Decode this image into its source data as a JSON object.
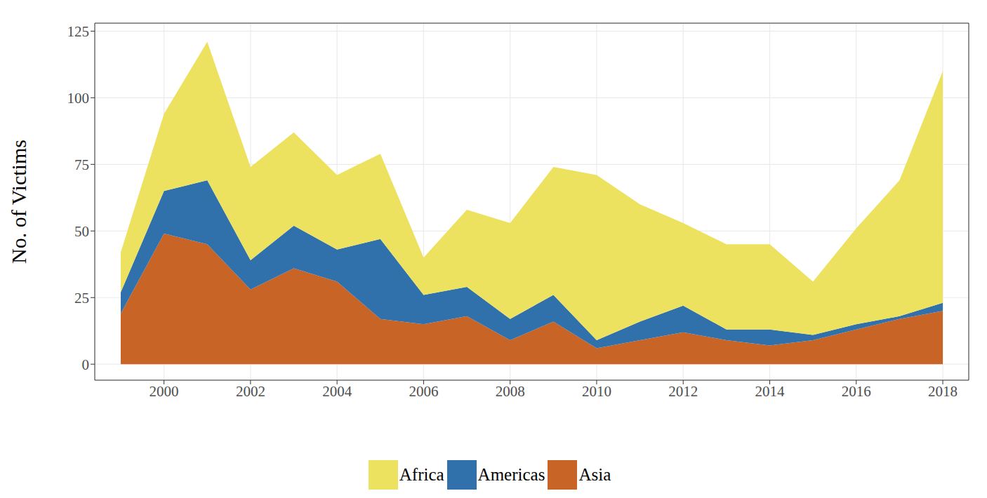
{
  "chart_data": {
    "type": "area",
    "stacked": true,
    "y_label": "No. of Victims",
    "x": [
      1999,
      2000,
      2001,
      2002,
      2003,
      2004,
      2005,
      2006,
      2007,
      2008,
      2009,
      2010,
      2011,
      2012,
      2013,
      2014,
      2015,
      2016,
      2017,
      2018
    ],
    "series": [
      {
        "name": "Africa",
        "color": "#ece25f",
        "values": [
          15,
          29,
          52,
          35,
          35,
          28,
          32,
          14,
          29,
          36,
          48,
          62,
          44,
          31,
          32,
          32,
          20,
          36,
          51,
          87
        ]
      },
      {
        "name": "Americas",
        "color": "#3071ab",
        "values": [
          8,
          16,
          24,
          11,
          16,
          12,
          30,
          11,
          11,
          8,
          10,
          3,
          7,
          10,
          4,
          6,
          2,
          2,
          1,
          3
        ]
      },
      {
        "name": "Asia",
        "color": "#c86426",
        "values": [
          19,
          49,
          45,
          28,
          36,
          31,
          17,
          15,
          18,
          9,
          16,
          6,
          9,
          12,
          9,
          7,
          9,
          13,
          17,
          20
        ]
      }
    ],
    "xlim": [
      1998.4,
      2018.6
    ],
    "xticks": [
      2000,
      2002,
      2004,
      2006,
      2008,
      2010,
      2012,
      2014,
      2016,
      2018
    ],
    "ylim": [
      -6,
      128
    ],
    "yticks": [
      0,
      25,
      50,
      75,
      100,
      125
    ],
    "grid": true,
    "legend": "bottom"
  }
}
